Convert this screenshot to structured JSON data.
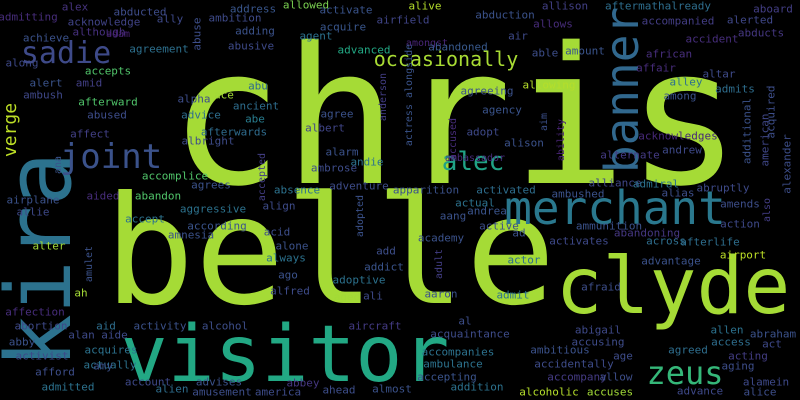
{
  "words": [
    {
      "text": "chris",
      "color": "#a5db36",
      "rotate": false
    },
    {
      "text": "belle",
      "color": "#a5db36",
      "rotate": false
    },
    {
      "text": "kira",
      "color": "#2c728e",
      "rotate": true
    },
    {
      "text": "clyde",
      "color": "#a5db36",
      "rotate": false
    },
    {
      "text": "visitor",
      "color": "#22a884",
      "rotate": false
    },
    {
      "text": "merchant",
      "color": "#2a788e",
      "rotate": false
    },
    {
      "text": "banner",
      "color": "#31688e",
      "rotate": true
    },
    {
      "text": "joint",
      "color": "#3b528b",
      "rotate": false
    },
    {
      "text": "zeus",
      "color": "#35b779",
      "rotate": false
    },
    {
      "text": "alec",
      "color": "#20a386",
      "rotate": false
    },
    {
      "text": "sadie",
      "color": "#3e4a89",
      "rotate": false
    },
    {
      "text": "occasionally",
      "color": "#a8db34",
      "rotate": false
    },
    {
      "text": "verge",
      "color": "#bddf26",
      "rotate": true
    },
    {
      "text": "chris",
      "color": "#a5db36",
      "rotate": false
    },
    {
      "text": "admitting",
      "color": "#472d7b",
      "rotate": false
    },
    {
      "text": "alex",
      "color": "#46337e",
      "rotate": false
    },
    {
      "text": "abducted",
      "color": "#3e4c8a",
      "rotate": false
    },
    {
      "text": "address",
      "color": "#39568c",
      "rotate": false
    },
    {
      "text": "allowed",
      "color": "#7ad151",
      "rotate": false
    },
    {
      "text": "activate",
      "color": "#3a548c",
      "rotate": false
    },
    {
      "text": "alive",
      "color": "#b5de2b",
      "rotate": false
    },
    {
      "text": "abduction",
      "color": "#3b528b",
      "rotate": false
    },
    {
      "text": "allison",
      "color": "#424086",
      "rotate": false
    },
    {
      "text": "aftermathalready",
      "color": "#2e6e8e",
      "rotate": false
    },
    {
      "text": "aboard",
      "color": "#433e85",
      "rotate": false
    },
    {
      "text": "alerted",
      "color": "#3f4788",
      "rotate": false
    },
    {
      "text": "abducts",
      "color": "#453781",
      "rotate": false
    },
    {
      "text": "ally",
      "color": "#3e4989",
      "rotate": false
    },
    {
      "text": "ambition",
      "color": "#3e4a89",
      "rotate": false
    },
    {
      "text": "acknowledge",
      "color": "#404387",
      "rotate": false
    },
    {
      "text": "achieve",
      "color": "#3b528b",
      "rotate": false
    },
    {
      "text": "although",
      "color": "#46307e",
      "rotate": false
    },
    {
      "text": "adam",
      "color": "#482173",
      "rotate": false
    },
    {
      "text": "abuse",
      "color": "#3d4e8a",
      "rotate": true
    },
    {
      "text": "adding",
      "color": "#3b528b",
      "rotate": false
    },
    {
      "text": "agent",
      "color": "#2c728e",
      "rotate": false
    },
    {
      "text": "acquire",
      "color": "#39568c",
      "rotate": false
    },
    {
      "text": "airfield",
      "color": "#404588",
      "rotate": false
    },
    {
      "text": "air",
      "color": "#3e4a89",
      "rotate": false
    },
    {
      "text": "allows",
      "color": "#472c7a",
      "rotate": false
    },
    {
      "text": "accompanied",
      "color": "#433d84",
      "rotate": false
    },
    {
      "text": "accident",
      "color": "#472e7c",
      "rotate": false
    },
    {
      "text": "agreement",
      "color": "#2d708e",
      "rotate": false
    },
    {
      "text": "abusive",
      "color": "#3e4a89",
      "rotate": false
    },
    {
      "text": "advanced",
      "color": "#22a884",
      "rotate": false
    },
    {
      "text": "amongst",
      "color": "#482576",
      "rotate": false
    },
    {
      "text": "abandoned",
      "color": "#38598c",
      "rotate": false
    },
    {
      "text": "able",
      "color": "#3d4e8a",
      "rotate": false
    },
    {
      "text": "amount",
      "color": "#3a548c",
      "rotate": false
    },
    {
      "text": "african",
      "color": "#472e7c",
      "rotate": false
    },
    {
      "text": "affair",
      "color": "#472c7a",
      "rotate": false
    },
    {
      "text": "along",
      "color": "#3e4989",
      "rotate": false
    },
    {
      "text": "accepts",
      "color": "#50c46a",
      "rotate": false
    },
    {
      "text": "altar",
      "color": "#3e4a89",
      "rotate": false
    },
    {
      "text": "alert",
      "color": "#3a538b",
      "rotate": false
    },
    {
      "text": "amid",
      "color": "#423f85",
      "rotate": false
    },
    {
      "text": "abu",
      "color": "#2e6d8e",
      "rotate": false
    },
    {
      "text": "alley",
      "color": "#2d708e",
      "rotate": false
    },
    {
      "text": "among",
      "color": "#3b528b",
      "rotate": false
    },
    {
      "text": "admits",
      "color": "#2e6e8e",
      "rotate": false
    },
    {
      "text": "acquired",
      "color": "#3d4e8a",
      "rotate": true
    },
    {
      "text": "ambush",
      "color": "#3f4889",
      "rotate": false
    },
    {
      "text": "afterward",
      "color": "#50c46a",
      "rotate": false
    },
    {
      "text": "alpha",
      "color": "#3d4d8a",
      "rotate": false
    },
    {
      "text": "ace",
      "color": "#a2da37",
      "rotate": false
    },
    {
      "text": "ancient",
      "color": "#2e6d8e",
      "rotate": false
    },
    {
      "text": "anderson",
      "color": "#433e85",
      "rotate": true
    },
    {
      "text": "actress alongside",
      "color": "#3a548c",
      "rotate": true
    },
    {
      "text": "agreeing",
      "color": "#3b528b",
      "rotate": false
    },
    {
      "text": "allowing",
      "color": "#b5de2b",
      "rotate": false
    },
    {
      "text": "abused",
      "color": "#3d4d8a",
      "rotate": false
    },
    {
      "text": "advice",
      "color": "#2e6e8e",
      "rotate": false
    },
    {
      "text": "abe",
      "color": "#287c8e",
      "rotate": false
    },
    {
      "text": "agree",
      "color": "#3b528b",
      "rotate": false
    },
    {
      "text": "agency",
      "color": "#3a548c",
      "rotate": false
    },
    {
      "text": "additional",
      "color": "#3b528b",
      "rotate": true
    },
    {
      "text": "american",
      "color": "#3f4788",
      "rotate": true
    },
    {
      "text": "affect",
      "color": "#424086",
      "rotate": false
    },
    {
      "text": "afterwards",
      "color": "#2f6c8e",
      "rotate": false
    },
    {
      "text": "albert",
      "color": "#404588",
      "rotate": false
    },
    {
      "text": "aim",
      "color": "#3c4f8a",
      "rotate": true
    },
    {
      "text": "ability",
      "color": "#482475",
      "rotate": true
    },
    {
      "text": "accused",
      "color": "#472d7b",
      "rotate": true
    },
    {
      "text": "adopt",
      "color": "#3e4989",
      "rotate": false
    },
    {
      "text": "acknowledges",
      "color": "#472878",
      "rotate": false
    },
    {
      "text": "alexander",
      "color": "#3d4e8a",
      "rotate": true
    },
    {
      "text": "albright",
      "color": "#3e4c8a",
      "rotate": false
    },
    {
      "text": "alison",
      "color": "#3b528b",
      "rotate": false
    },
    {
      "text": "alternate",
      "color": "#443b84",
      "rotate": false
    },
    {
      "text": "andrew",
      "color": "#3e4989",
      "rotate": false
    },
    {
      "text": "also",
      "color": "#433d84",
      "rotate": true
    },
    {
      "text": "ana",
      "color": "#3a548c",
      "rotate": true
    },
    {
      "text": "alarm",
      "color": "#3b528b",
      "rotate": false
    },
    {
      "text": "andie",
      "color": "#2c738e",
      "rotate": false
    },
    {
      "text": "accomplice",
      "color": "#50c46a",
      "rotate": false
    },
    {
      "text": "ambrose",
      "color": "#3e4c8a",
      "rotate": false
    },
    {
      "text": "ambassador",
      "color": "#472c7a",
      "rotate": false
    },
    {
      "text": "alliance",
      "color": "#3f4788",
      "rotate": false
    },
    {
      "text": "admiral",
      "color": "#2c728e",
      "rotate": false
    },
    {
      "text": "aided",
      "color": "#472d7b",
      "rotate": false
    },
    {
      "text": "abandon",
      "color": "#50c46a",
      "rotate": false
    },
    {
      "text": "agrees",
      "color": "#3b528b",
      "rotate": false
    },
    {
      "text": "accepted",
      "color": "#433e85",
      "rotate": true
    },
    {
      "text": "absence",
      "color": "#2c728e",
      "rotate": false
    },
    {
      "text": "adventure",
      "color": "#3e4c8a",
      "rotate": false
    },
    {
      "text": "apparition",
      "color": "#3b528b",
      "rotate": false
    },
    {
      "text": "activated",
      "color": "#2e6e8e",
      "rotate": false
    },
    {
      "text": "ambushed",
      "color": "#3b528b",
      "rotate": false
    },
    {
      "text": "alias",
      "color": "#3d4e8a",
      "rotate": false
    },
    {
      "text": "abruptly",
      "color": "#3e4a89",
      "rotate": false
    },
    {
      "text": "airplane",
      "color": "#3b528b",
      "rotate": false
    },
    {
      "text": "actual",
      "color": "#2c728e",
      "rotate": false
    },
    {
      "text": "aggressive",
      "color": "#2c728e",
      "rotate": false
    },
    {
      "text": "align",
      "color": "#3e4c8a",
      "rotate": false
    },
    {
      "text": "aang",
      "color": "#3b528b",
      "rotate": false
    },
    {
      "text": "andrea",
      "color": "#3a548c",
      "rotate": false
    },
    {
      "text": "amends",
      "color": "#3d4e8a",
      "rotate": false
    },
    {
      "text": "allie",
      "color": "#3e4989",
      "rotate": false
    },
    {
      "text": "accept",
      "color": "#2c728e",
      "rotate": false
    },
    {
      "text": "according",
      "color": "#3a548c",
      "rotate": false
    },
    {
      "text": "adopted",
      "color": "#3b528b",
      "rotate": true
    },
    {
      "text": "active",
      "color": "#3d4e8a",
      "rotate": false
    },
    {
      "text": "ammunition",
      "color": "#3b528b",
      "rotate": false
    },
    {
      "text": "action",
      "color": "#3e4989",
      "rotate": false
    },
    {
      "text": "amnesia",
      "color": "#3b528b",
      "rotate": false
    },
    {
      "text": "acid",
      "color": "#3d4e8a",
      "rotate": false
    },
    {
      "text": "academy",
      "color": "#3b528b",
      "rotate": false
    },
    {
      "text": "ad",
      "color": "#3b528b",
      "rotate": false
    },
    {
      "text": "abandoning",
      "color": "#453781",
      "rotate": false
    },
    {
      "text": "activates",
      "color": "#3e4989",
      "rotate": false
    },
    {
      "text": "across",
      "color": "#2e6e8e",
      "rotate": false
    },
    {
      "text": "afterlife",
      "color": "#2e6e8e",
      "rotate": false
    },
    {
      "text": "alter",
      "color": "#a2da37",
      "rotate": false
    },
    {
      "text": "alone",
      "color": "#3b528b",
      "rotate": false
    },
    {
      "text": "add",
      "color": "#3d4e8a",
      "rotate": false
    },
    {
      "text": "airport",
      "color": "#bddf26",
      "rotate": false
    },
    {
      "text": "amulet",
      "color": "#3b528b",
      "rotate": true
    },
    {
      "text": "always",
      "color": "#2c728e",
      "rotate": false
    },
    {
      "text": "addict",
      "color": "#3a548c",
      "rotate": false
    },
    {
      "text": "actor",
      "color": "#2e6e8e",
      "rotate": false
    },
    {
      "text": "advantage",
      "color": "#3b528b",
      "rotate": false
    },
    {
      "text": "ago",
      "color": "#3b528b",
      "rotate": false
    },
    {
      "text": "adult",
      "color": "#433e85",
      "rotate": true
    },
    {
      "text": "adoptive",
      "color": "#2c728e",
      "rotate": false
    },
    {
      "text": "afraid",
      "color": "#3d4e8a",
      "rotate": false
    },
    {
      "text": "alfred",
      "color": "#3e4c8a",
      "rotate": false
    },
    {
      "text": "aged",
      "color": "#a2da37",
      "rotate": false
    },
    {
      "text": "ali",
      "color": "#3e4a89",
      "rotate": false
    },
    {
      "text": "aaron",
      "color": "#3b528b",
      "rotate": false
    },
    {
      "text": "admit",
      "color": "#2c728e",
      "rotate": false
    },
    {
      "text": "ah",
      "color": "#a5db36",
      "rotate": false
    },
    {
      "text": "affection",
      "color": "#472d7b",
      "rotate": false
    },
    {
      "text": "al",
      "color": "#3d4e8a",
      "rotate": false
    },
    {
      "text": "abortion",
      "color": "#3e4989",
      "rotate": false
    },
    {
      "text": "aid",
      "color": "#2e6e8e",
      "rotate": false
    },
    {
      "text": "activity",
      "color": "#3b528b",
      "rotate": false
    },
    {
      "text": "alcohol",
      "color": "#3d4e8a",
      "rotate": false
    },
    {
      "text": "aircraft",
      "color": "#443b84",
      "rotate": false
    },
    {
      "text": "acquaintance",
      "color": "#3e4c8a",
      "rotate": false
    },
    {
      "text": "abigail",
      "color": "#3e4989",
      "rotate": false
    },
    {
      "text": "allen",
      "color": "#2c728e",
      "rotate": false
    },
    {
      "text": "abraham",
      "color": "#3b528b",
      "rotate": false
    },
    {
      "text": "access",
      "color": "#2e6e8e",
      "rotate": false
    },
    {
      "text": "act",
      "color": "#3e4989",
      "rotate": false
    },
    {
      "text": "abby",
      "color": "#3b528b",
      "rotate": false
    },
    {
      "text": "alan aide",
      "color": "#3e4a89",
      "rotate": false
    },
    {
      "text": "accusing",
      "color": "#3e4c8a",
      "rotate": false
    },
    {
      "text": "agreed",
      "color": "#2e6e8e",
      "rotate": false
    },
    {
      "text": "activist",
      "color": "#3e4989",
      "rotate": false
    },
    {
      "text": "acquires",
      "color": "#2c728e",
      "rotate": false
    },
    {
      "text": "accompanies",
      "color": "#2c728e",
      "rotate": false
    },
    {
      "text": "ambitious",
      "color": "#3b528b",
      "rotate": false
    },
    {
      "text": "age",
      "color": "#3e4c8a",
      "rotate": false
    },
    {
      "text": "acting",
      "color": "#433d84",
      "rotate": false
    },
    {
      "text": "afford",
      "color": "#3d4e8a",
      "rotate": false
    },
    {
      "text": "actually",
      "color": "#2c728e",
      "rotate": false
    },
    {
      "text": "amy",
      "color": "#3b528b",
      "rotate": false
    },
    {
      "text": "ambulance",
      "color": "#2c728e",
      "rotate": false
    },
    {
      "text": "accidentally",
      "color": "#3e4c8a",
      "rotate": false
    },
    {
      "text": "aging",
      "color": "#3d4e8a",
      "rotate": false
    },
    {
      "text": "account",
      "color": "#3e4989",
      "rotate": false
    },
    {
      "text": "advises",
      "color": "#3b528b",
      "rotate": false
    },
    {
      "text": "accepting",
      "color": "#3a548c",
      "rotate": false
    },
    {
      "text": "accompany",
      "color": "#443b84",
      "rotate": false
    },
    {
      "text": "allow",
      "color": "#3d4e8a",
      "rotate": false
    },
    {
      "text": "alamein",
      "color": "#3e4989",
      "rotate": false
    },
    {
      "text": "admitted",
      "color": "#2c728e",
      "rotate": false
    },
    {
      "text": "alien",
      "color": "#2e6e8e",
      "rotate": false
    },
    {
      "text": "amusement",
      "color": "#3d4e8a",
      "rotate": false
    },
    {
      "text": "abbey",
      "color": "#453781",
      "rotate": false
    },
    {
      "text": "america",
      "color": "#3e4c8a",
      "rotate": false
    },
    {
      "text": "ahead",
      "color": "#3d4e8a",
      "rotate": false
    },
    {
      "text": "almost",
      "color": "#3b528b",
      "rotate": false
    },
    {
      "text": "addition",
      "color": "#2c728e",
      "rotate": false
    },
    {
      "text": "alcoholic",
      "color": "#b5de2b",
      "rotate": false
    },
    {
      "text": "accuses",
      "color": "#a2da37",
      "rotate": false
    },
    {
      "text": "advance",
      "color": "#3e4989",
      "rotate": false
    },
    {
      "text": "alice",
      "color": "#3d4e8a",
      "rotate": false
    }
  ]
}
